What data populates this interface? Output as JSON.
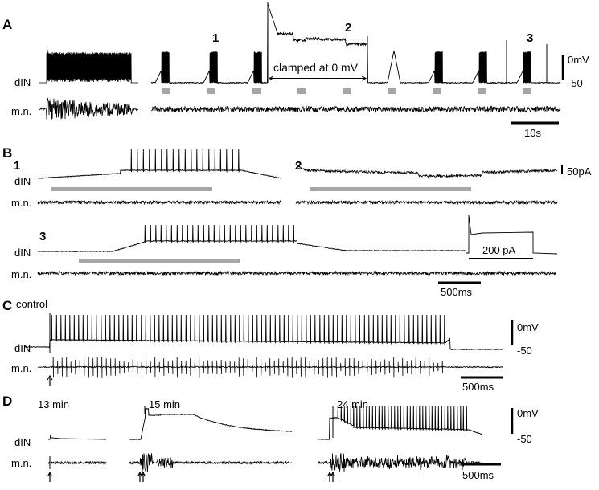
{
  "panels": {
    "A": {
      "label": "A",
      "trace_label_top": "dIN",
      "trace_label_bottom": "m.n.",
      "episodes": [
        "1",
        "2",
        "3"
      ],
      "clamp_annotation": "clamped at 0 mV",
      "scale_v_top": "0mV",
      "scale_v_bottom": "-50",
      "scale_time": "10s"
    },
    "B": {
      "label": "B",
      "episodes": [
        "1",
        "2",
        "3"
      ],
      "trace_label_top": "dIN",
      "trace_label_bottom": "m.n.",
      "scale_current": "50pA",
      "step_current": "200 pA",
      "scale_time": "500ms"
    },
    "C": {
      "label": "C",
      "condition": "control",
      "trace_label_top": "dIN",
      "trace_label_bottom": "m.n.",
      "scale_v_top": "0mV",
      "scale_v_bottom": "-50",
      "scale_time": "500ms"
    },
    "D": {
      "label": "D",
      "times": [
        "13 min",
        "15 min",
        "24 min"
      ],
      "trace_label_top": "dIN",
      "trace_label_bottom": "m.n.",
      "scale_v_top": "0mV",
      "scale_v_bottom": "-50",
      "scale_time": "500ms"
    }
  },
  "colors": {
    "trace": "#000000",
    "stimulus_bar": "#a6a6a6"
  }
}
